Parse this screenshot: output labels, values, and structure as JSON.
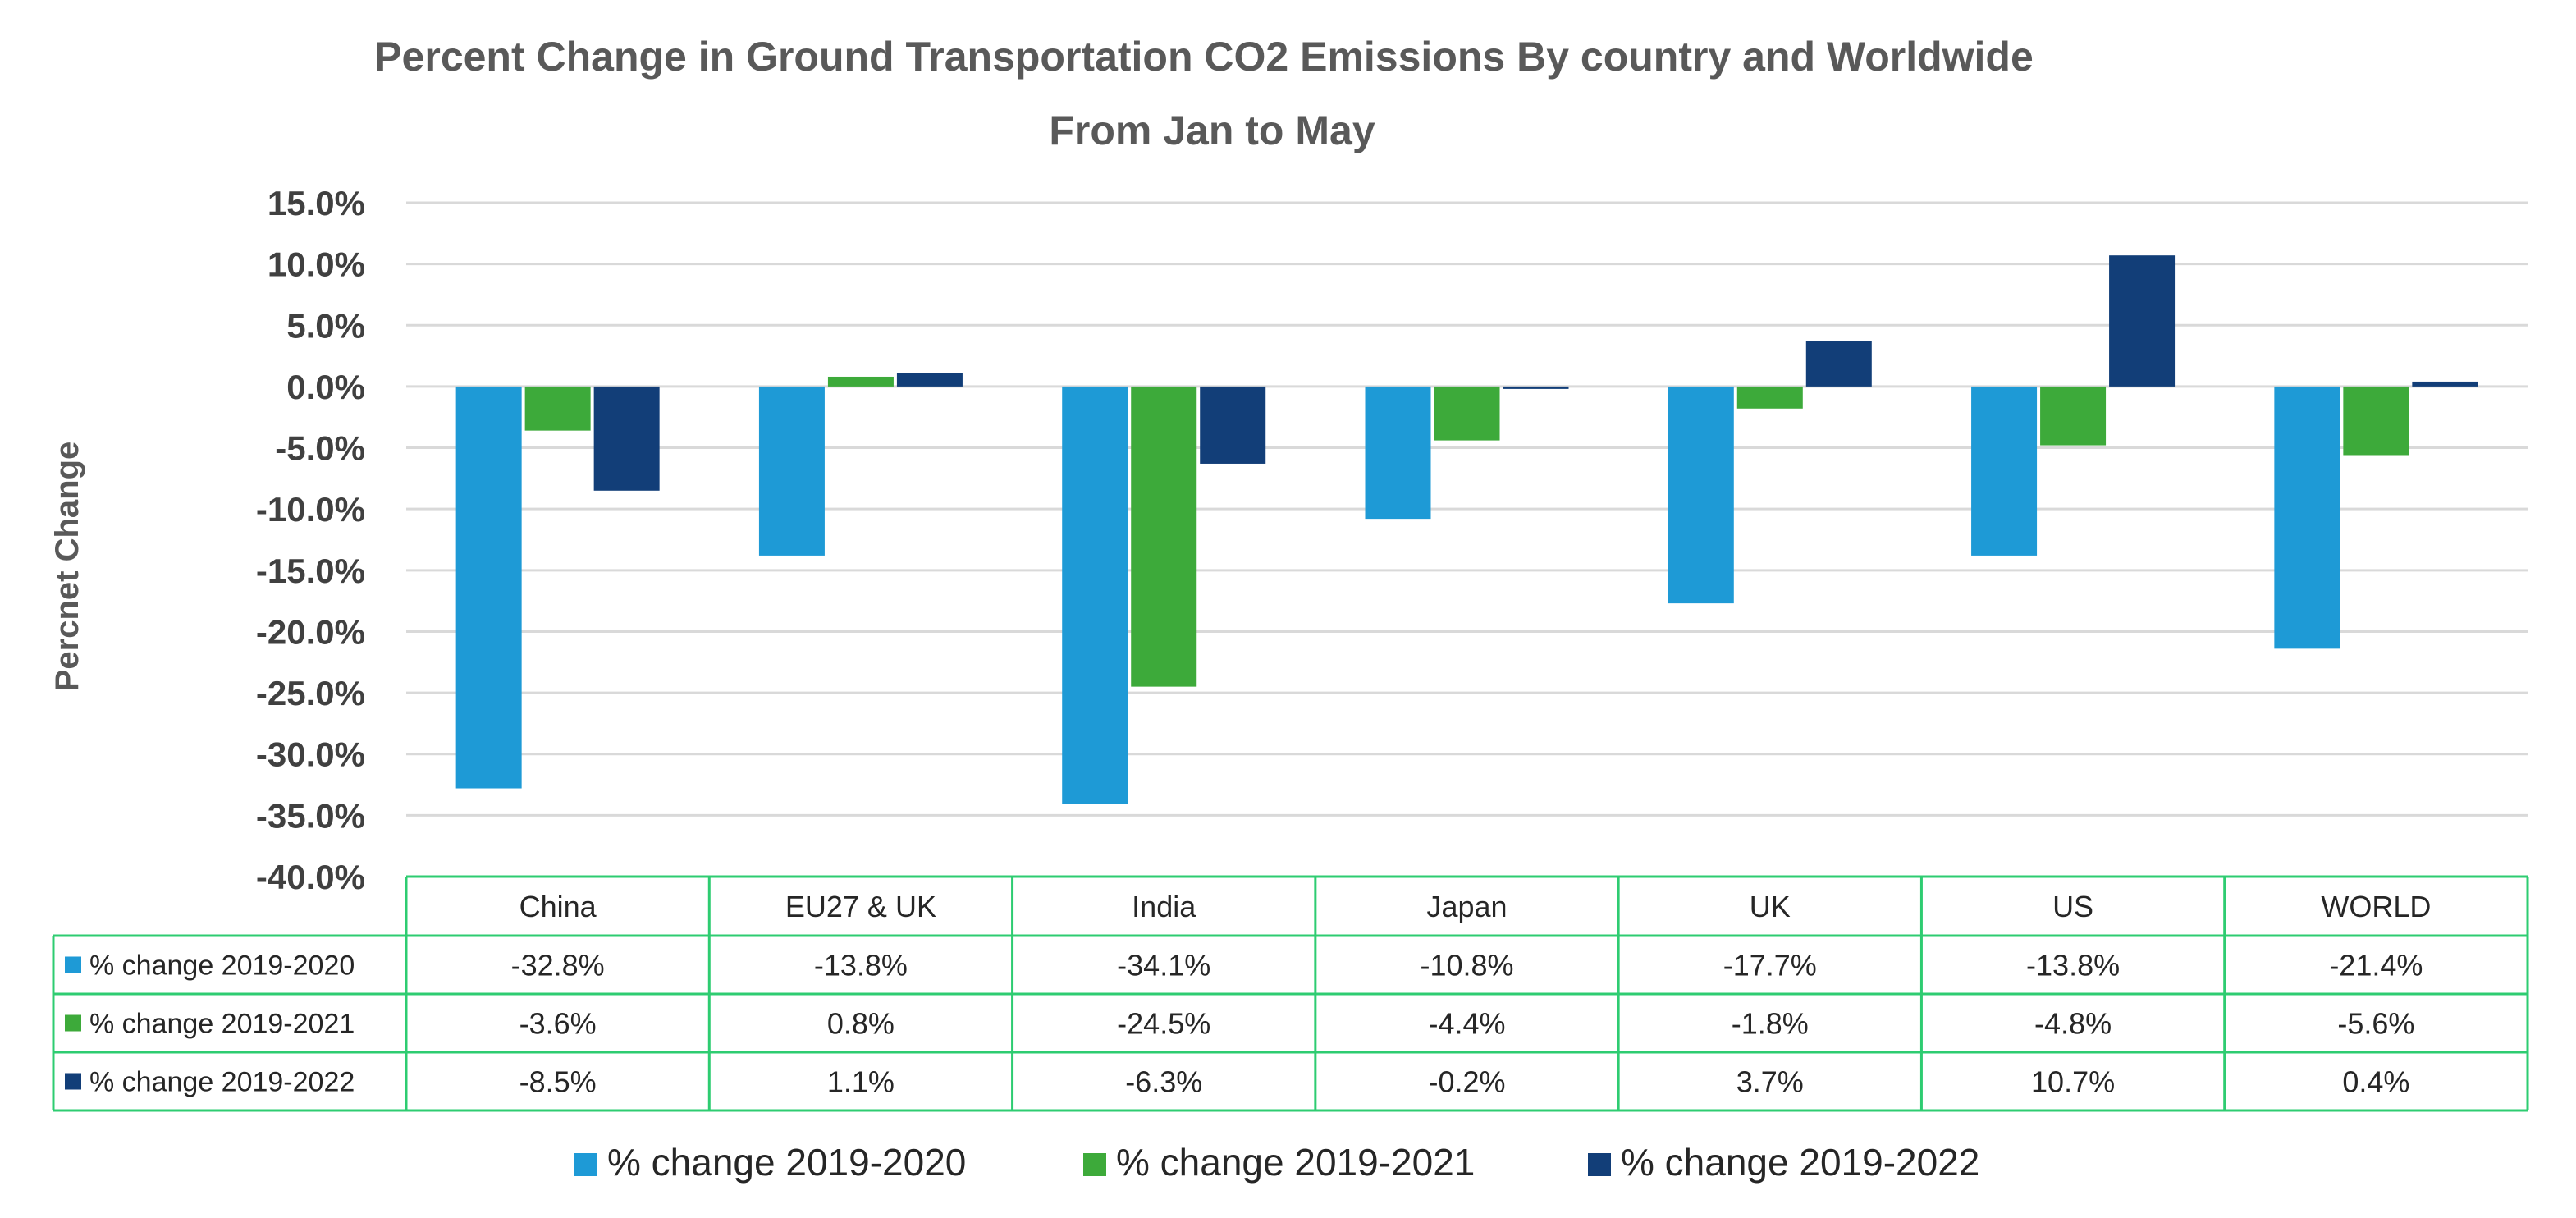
{
  "chart_data": {
    "type": "bar",
    "title": "Percent Change in Ground Transportation CO2 Emissions By country and Worldwide",
    "subtitle": "From Jan to May",
    "xlabel": "",
    "ylabel": "Percnet  Change",
    "ylim": [
      -40,
      15
    ],
    "ytick_step": 5,
    "ytick_labels": [
      "15.0%",
      "10.0%",
      "5.0%",
      "0.0%",
      "-5.0%",
      "-10.0%",
      "-15.0%",
      "-20.0%",
      "-25.0%",
      "-30.0%",
      "-35.0%",
      "-40.0%"
    ],
    "grid": true,
    "legend_position": "bottom",
    "data_table": true,
    "categories": [
      "China",
      "EU27 & UK",
      "India",
      "Japan",
      "UK",
      "US",
      "WORLD"
    ],
    "series": [
      {
        "name": "% change 2019-2020",
        "color": "#1E9AD6",
        "values": [
          -32.8,
          -13.8,
          -34.1,
          -10.8,
          -17.7,
          -13.8,
          -21.4
        ],
        "labels": [
          "-32.8%",
          "-13.8%",
          "-34.1%",
          "-10.8%",
          "-17.7%",
          "-13.8%",
          "-21.4%"
        ]
      },
      {
        "name": "% change 2019-2021",
        "color": "#3DAA3A",
        "values": [
          -3.6,
          0.8,
          -24.5,
          -4.4,
          -1.8,
          -4.8,
          -5.6
        ],
        "labels": [
          "-3.6%",
          "0.8%",
          "-24.5%",
          "-4.4%",
          "-1.8%",
          "-4.8%",
          "-5.6%"
        ]
      },
      {
        "name": "% change 2019-2022",
        "color": "#123E78",
        "values": [
          -8.5,
          1.1,
          -6.3,
          -0.2,
          3.7,
          10.7,
          0.4
        ],
        "labels": [
          "-8.5%",
          "1.1%",
          "-6.3%",
          "-0.2%",
          "3.7%",
          "10.7%",
          "0.4%"
        ]
      }
    ],
    "table_border_color": "#2ECC71",
    "gridline_color": "#D9D9D9"
  }
}
